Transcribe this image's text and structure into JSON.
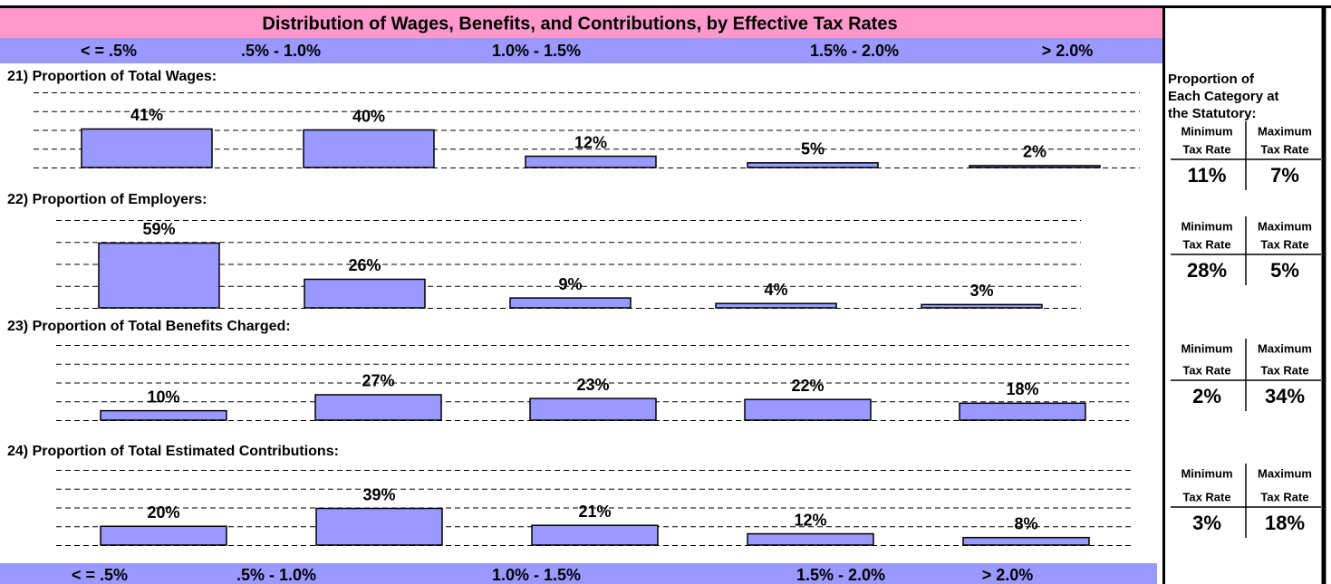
{
  "header": {
    "title": "Distribution of Wages, Benefits, and Contributions, by Effective Tax Rates",
    "bands": [
      "< = .5%",
      ".5% - 1.0%",
      "1.0% - 1.5%",
      "1.5% - 2.0%",
      "> 2.0%"
    ]
  },
  "footer": {
    "bands": [
      "< = .5%",
      ".5% - 1.0%",
      "1.0% - 1.5%",
      "1.5% - 2.0%",
      "> 2.0%"
    ]
  },
  "chart_data": [
    {
      "type": "bar",
      "title": "21) Proportion of Total Wages:",
      "values": [
        41,
        40,
        12,
        5,
        2
      ],
      "value_labels": [
        "41%",
        "40%",
        "12%",
        "5%",
        "2%"
      ],
      "color": "#9999ff",
      "ylim": [
        0,
        80
      ],
      "yticks": [
        0,
        20,
        40,
        60,
        80
      ],
      "grid": true
    },
    {
      "type": "bar",
      "title": "22) Proportion of Employers:",
      "values": [
        59,
        26,
        9,
        4,
        3
      ],
      "value_labels": [
        "59%",
        "26%",
        "9%",
        "4%",
        "3%"
      ],
      "color": "#9999ff",
      "ylim": [
        0,
        80
      ],
      "yticks": [
        0,
        20,
        40,
        60,
        80
      ],
      "grid": true
    },
    {
      "type": "bar",
      "title": "23) Proportion of Total Benefits Charged:",
      "values": [
        10,
        27,
        23,
        22,
        18
      ],
      "value_labels": [
        "10%",
        "27%",
        "23%",
        "22%",
        "18%"
      ],
      "color": "#9999ff",
      "ylim": [
        0,
        80
      ],
      "yticks": [
        0,
        20,
        40,
        60,
        80
      ],
      "grid": true
    },
    {
      "type": "bar",
      "title": "24) Proportion of Total Estimated Contributions:",
      "values": [
        20,
        39,
        21,
        12,
        8
      ],
      "value_labels": [
        "20%",
        "39%",
        "21%",
        "12%",
        "8%"
      ],
      "color": "#9999ff",
      "ylim": [
        0,
        80
      ],
      "yticks": [
        0,
        20,
        40,
        60,
        80
      ],
      "grid": true
    }
  ],
  "side_panel": {
    "title": [
      "Proportion of",
      "Each Category at",
      "the Statutory:"
    ],
    "rows": [
      {
        "min_label": [
          "Minimum",
          "Tax Rate"
        ],
        "max_label": [
          "Maximum",
          "Tax Rate"
        ],
        "min": "11%",
        "max": "7%"
      },
      {
        "min_label": [
          "Minimum",
          "Tax Rate"
        ],
        "max_label": [
          "Maximum",
          "Tax Rate"
        ],
        "min": "28%",
        "max": "5%"
      },
      {
        "min_label": [
          "Minimum",
          "Tax Rate"
        ],
        "max_label": [
          "Maximum",
          "Tax Rate"
        ],
        "min": "2%",
        "max": "34%"
      },
      {
        "min_label": [
          "Minimum",
          "Tax Rate"
        ],
        "max_label": [
          "Maximum",
          "Tax Rate"
        ],
        "min": "3%",
        "max": "18%"
      }
    ]
  }
}
